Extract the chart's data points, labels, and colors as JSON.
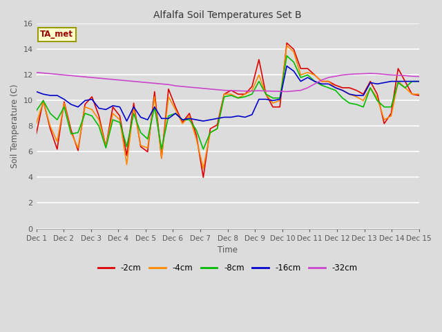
{
  "title": "Alfalfa Soil Temperatures Set B",
  "xlabel": "Time",
  "ylabel": "Soil Temperature (C)",
  "annotation": "TA_met",
  "ylim": [
    0,
    16
  ],
  "yticks": [
    0,
    2,
    4,
    6,
    8,
    10,
    12,
    14,
    16
  ],
  "xtick_labels": [
    "Dec 1",
    "Dec 2",
    "Dec 3",
    "Dec 4",
    "Dec 5",
    "Dec 6",
    "Dec 7",
    "Dec 8",
    "Dec 9",
    "Dec 10",
    "Dec 11",
    "Dec 12",
    "Dec 13",
    "Dec 14",
    "Dec 15"
  ],
  "background_color": "#dcdcdc",
  "series": {
    "-2cm": {
      "color": "#dd0000",
      "data": [
        7.4,
        10.0,
        7.8,
        6.2,
        9.9,
        7.7,
        6.1,
        9.7,
        10.3,
        8.8,
        6.4,
        9.5,
        8.8,
        5.7,
        9.8,
        6.4,
        6.0,
        10.7,
        5.5,
        10.9,
        9.5,
        8.3,
        9.0,
        7.3,
        4.0,
        7.8,
        8.1,
        10.5,
        10.8,
        10.5,
        10.5,
        11.1,
        13.2,
        10.5,
        9.5,
        9.5,
        14.5,
        14.0,
        12.5,
        12.5,
        12.0,
        11.5,
        11.5,
        11.2,
        11.0,
        11.0,
        10.8,
        10.5,
        11.5,
        10.5,
        8.2,
        9.0,
        12.5,
        11.5,
        10.5,
        10.4
      ]
    },
    "-4cm": {
      "color": "#ff8800",
      "data": [
        8.2,
        9.9,
        8.0,
        6.8,
        9.8,
        7.5,
        6.3,
        9.5,
        9.3,
        8.5,
        6.4,
        9.0,
        8.5,
        5.0,
        9.5,
        6.5,
        6.3,
        10.3,
        5.5,
        10.3,
        9.3,
        8.2,
        8.8,
        7.0,
        4.7,
        7.5,
        7.8,
        10.5,
        10.5,
        10.2,
        10.5,
        10.8,
        12.0,
        10.5,
        9.8,
        10.0,
        14.3,
        13.8,
        12.0,
        12.2,
        12.0,
        11.5,
        11.5,
        11.0,
        10.8,
        10.5,
        10.3,
        10.0,
        11.0,
        10.2,
        8.5,
        8.8,
        11.5,
        11.0,
        10.5,
        10.5
      ]
    },
    "-8cm": {
      "color": "#00bb00",
      "data": [
        9.2,
        10.0,
        9.0,
        8.5,
        9.5,
        7.4,
        7.5,
        9.0,
        8.8,
        8.0,
        6.3,
        8.5,
        8.3,
        6.4,
        9.0,
        7.5,
        7.0,
        9.5,
        6.2,
        8.8,
        9.0,
        8.5,
        8.5,
        7.7,
        6.2,
        7.5,
        7.8,
        10.3,
        10.4,
        10.2,
        10.3,
        10.5,
        11.5,
        10.5,
        10.2,
        10.2,
        13.5,
        13.0,
        11.8,
        12.0,
        11.5,
        11.2,
        11.0,
        10.8,
        10.2,
        9.8,
        9.7,
        9.5,
        11.0,
        10.0,
        9.5,
        9.5,
        11.4,
        11.0,
        11.5,
        11.5
      ]
    },
    "-16cm": {
      "color": "#0000cc",
      "data": [
        10.7,
        10.5,
        10.4,
        10.4,
        10.1,
        9.7,
        9.5,
        10.0,
        10.1,
        9.4,
        9.3,
        9.6,
        9.5,
        8.4,
        9.5,
        8.7,
        8.5,
        9.5,
        8.6,
        8.6,
        9.0,
        8.5,
        8.6,
        8.5,
        8.4,
        8.5,
        8.6,
        8.7,
        8.7,
        8.8,
        8.7,
        8.9,
        10.1,
        10.1,
        10.0,
        10.1,
        12.7,
        12.3,
        11.5,
        11.8,
        11.5,
        11.3,
        11.3,
        11.0,
        10.8,
        10.5,
        10.4,
        10.4,
        11.4,
        11.3,
        11.4,
        11.5,
        11.5,
        11.5,
        11.5,
        11.5
      ]
    },
    "-32cm": {
      "color": "#cc44cc",
      "data": [
        12.2,
        12.15,
        12.1,
        12.05,
        12.0,
        11.95,
        11.9,
        11.85,
        11.8,
        11.75,
        11.7,
        11.65,
        11.6,
        11.55,
        11.5,
        11.45,
        11.4,
        11.35,
        11.3,
        11.25,
        11.15,
        11.1,
        11.05,
        11.0,
        10.95,
        10.9,
        10.85,
        10.8,
        10.78,
        10.76,
        10.74,
        10.75,
        10.77,
        10.75,
        10.73,
        10.72,
        10.7,
        10.75,
        10.8,
        11.0,
        11.3,
        11.6,
        11.8,
        11.9,
        12.0,
        12.05,
        12.08,
        12.1,
        12.12,
        12.1,
        12.05,
        12.0,
        11.98,
        11.95,
        11.9,
        11.88
      ]
    }
  },
  "legend_entries": [
    "-2cm",
    "-4cm",
    "-8cm",
    "-16cm",
    "-32cm"
  ],
  "legend_colors": [
    "#dd0000",
    "#ff8800",
    "#00bb00",
    "#0000cc",
    "#cc44cc"
  ]
}
